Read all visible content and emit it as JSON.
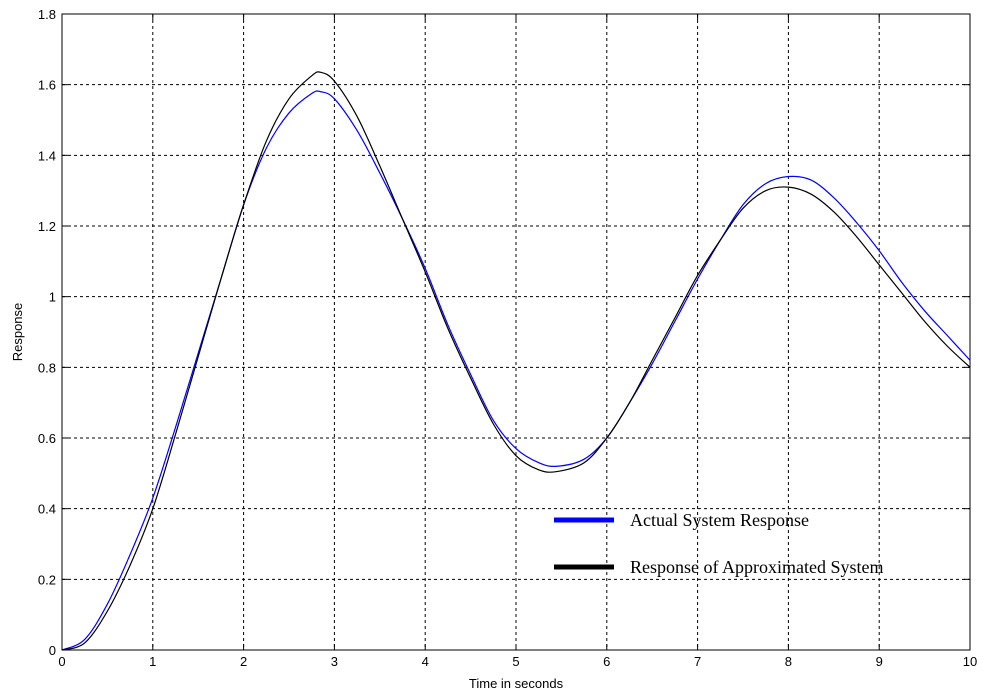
{
  "chart_data": {
    "type": "line",
    "xlabel": "Time in seconds",
    "ylabel": "Response",
    "xlim": [
      0,
      10
    ],
    "ylim": [
      0,
      1.8
    ],
    "xticks": [
      0,
      1,
      2,
      3,
      4,
      5,
      6,
      7,
      8,
      9,
      10
    ],
    "yticks": [
      0,
      0.2,
      0.4,
      0.6,
      0.8,
      1,
      1.2,
      1.4,
      1.6,
      1.8
    ],
    "grid": true,
    "legend_position": "bottom-right",
    "series": [
      {
        "name": "Actual System Response",
        "color": "#0000ff",
        "x": [
          0,
          0.25,
          0.5,
          0.75,
          1.0,
          1.25,
          1.5,
          1.75,
          2.0,
          2.25,
          2.5,
          2.75,
          2.85,
          3.0,
          3.25,
          3.5,
          3.75,
          4.0,
          4.25,
          4.5,
          4.75,
          5.0,
          5.25,
          5.45,
          5.75,
          6.0,
          6.25,
          6.5,
          6.75,
          7.0,
          7.25,
          7.5,
          7.75,
          8.0,
          8.25,
          8.5,
          8.75,
          9.0,
          9.25,
          9.5,
          9.75,
          10.0
        ],
        "y": [
          0,
          0.03,
          0.13,
          0.27,
          0.43,
          0.63,
          0.84,
          1.05,
          1.26,
          1.42,
          1.52,
          1.575,
          1.58,
          1.56,
          1.47,
          1.35,
          1.22,
          1.08,
          0.92,
          0.78,
          0.65,
          0.57,
          0.53,
          0.52,
          0.54,
          0.6,
          0.7,
          0.81,
          0.93,
          1.05,
          1.16,
          1.26,
          1.32,
          1.34,
          1.33,
          1.28,
          1.21,
          1.13,
          1.04,
          0.96,
          0.89,
          0.82
        ]
      },
      {
        "name": "Response of Approximated System",
        "color": "#000000",
        "x": [
          0,
          0.25,
          0.5,
          0.75,
          1.0,
          1.25,
          1.5,
          1.75,
          2.0,
          2.25,
          2.5,
          2.75,
          2.85,
          3.0,
          3.25,
          3.5,
          3.75,
          4.0,
          4.25,
          4.5,
          4.75,
          5.0,
          5.25,
          5.45,
          5.75,
          6.0,
          6.25,
          6.5,
          6.75,
          7.0,
          7.25,
          7.5,
          7.75,
          8.0,
          8.25,
          8.5,
          8.75,
          9.0,
          9.25,
          9.5,
          9.75,
          10.0
        ],
        "y": [
          0,
          0.02,
          0.11,
          0.24,
          0.4,
          0.61,
          0.83,
          1.05,
          1.26,
          1.44,
          1.56,
          1.625,
          1.635,
          1.61,
          1.51,
          1.37,
          1.22,
          1.07,
          0.91,
          0.77,
          0.64,
          0.55,
          0.51,
          0.505,
          0.53,
          0.6,
          0.7,
          0.82,
          0.94,
          1.06,
          1.16,
          1.25,
          1.3,
          1.31,
          1.29,
          1.24,
          1.17,
          1.09,
          1.01,
          0.93,
          0.86,
          0.8
        ]
      }
    ]
  }
}
